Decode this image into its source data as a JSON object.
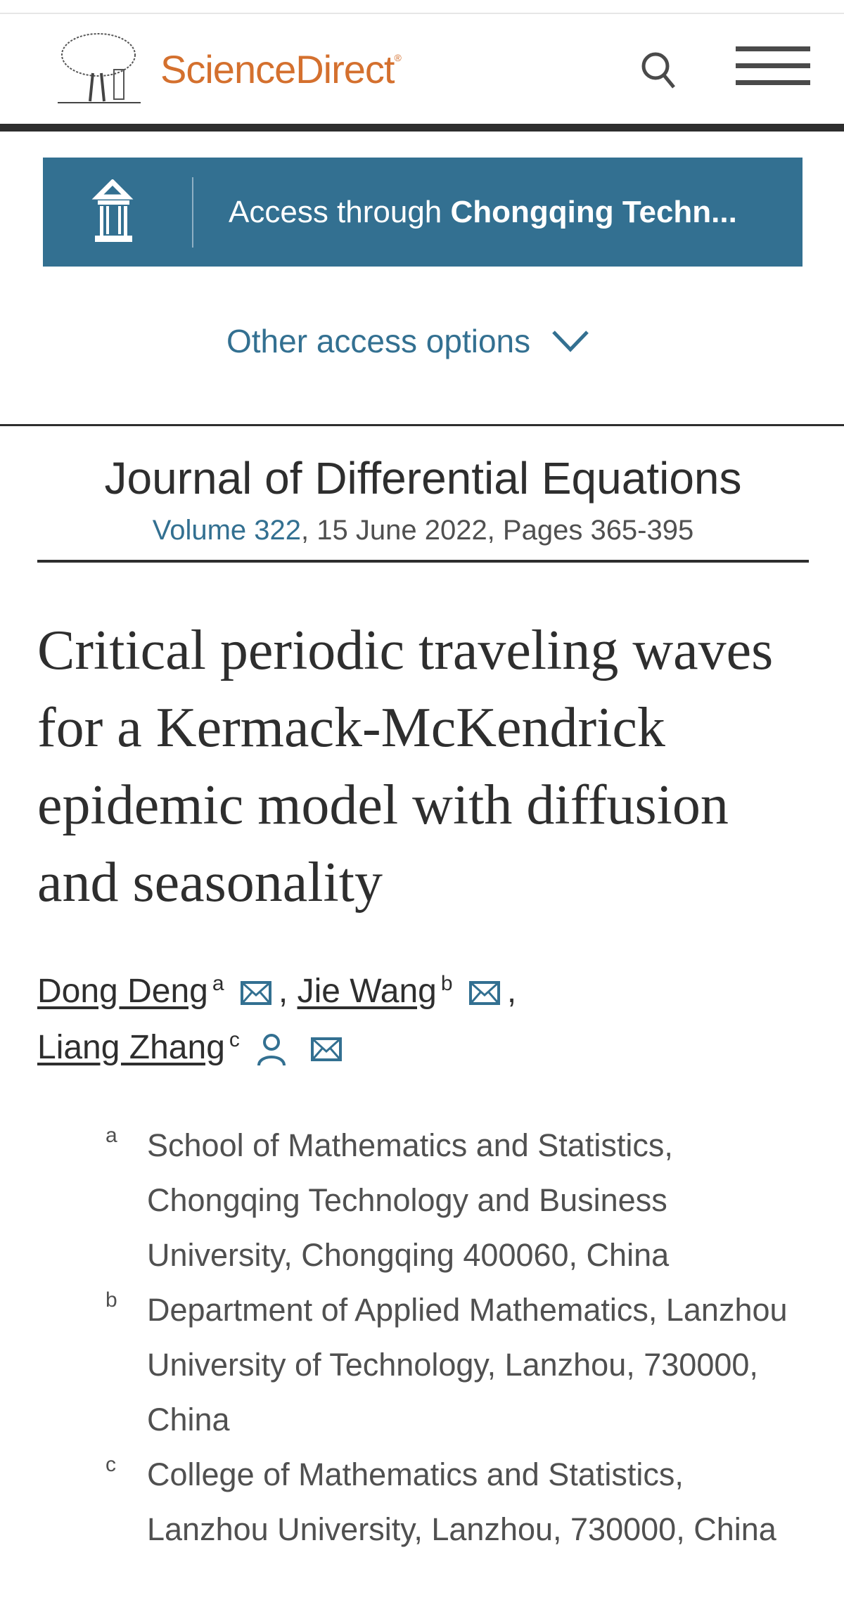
{
  "header": {
    "brand": "ScienceDirect",
    "registered": "®",
    "logo_icon": "elsevier-tree-logo",
    "search_icon": "search-icon",
    "menu_icon": "hamburger-menu-icon"
  },
  "access": {
    "prefix": "Access through ",
    "institution": "Chongqing Techn...",
    "icon": "institution-icon",
    "other_options": "Other access options"
  },
  "journal": {
    "name": "Journal of Differential Equations",
    "volume": "Volume 322",
    "details": ", 15 June 2022, Pages 365-395"
  },
  "article": {
    "title": "Critical periodic traveling waves for a Kermack-McKendrick epidemic model with diffusion and seasonality",
    "authors": [
      {
        "name": "Dong Deng",
        "affiliation": "a"
      },
      {
        "name": "Jie Wang",
        "affiliation": "b"
      },
      {
        "name": "Liang Zhang",
        "affiliation": "c"
      }
    ],
    "separator": ","
  },
  "affiliations": [
    {
      "label": "a",
      "text": "School of Mathematics and Statistics, Chongqing Technology and Business University, Chongqing 400060, China"
    },
    {
      "label": "b",
      "text": "Department of Applied Mathematics, Lanzhou University of Technology, Lanzhou, 730000, China"
    },
    {
      "label": "c",
      "text": "College of Mathematics and Statistics, Lanzhou University, Lanzhou, 730000, China"
    }
  ],
  "colors": {
    "brand": "#d4702e",
    "accent": "#337091",
    "text": "#2e2e2e"
  }
}
